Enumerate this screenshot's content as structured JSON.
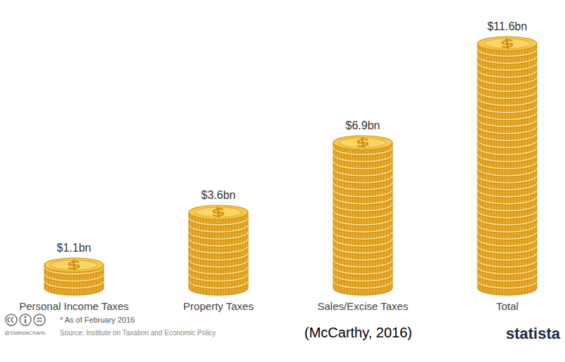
{
  "chart_data": {
    "type": "bar",
    "categories": [
      "Personal Income Taxes",
      "Property Taxes",
      "Sales/Excise Taxes",
      "Total"
    ],
    "values": [
      1.1,
      3.6,
      6.9,
      11.6
    ],
    "value_labels": [
      "$1.1bn",
      "$3.6bn",
      "$6.9bn",
      "$11.6bn"
    ],
    "data_labels": true,
    "color": "#f6c94a",
    "ylim": [
      0,
      12
    ],
    "tick_labels": false,
    "note": "* As of February 2016",
    "source": "Source: Institute on Taxation and Economic Policy",
    "citation": "(McCarthy, 2016)",
    "credit": "@StatistaCharts",
    "brand": "statista"
  }
}
